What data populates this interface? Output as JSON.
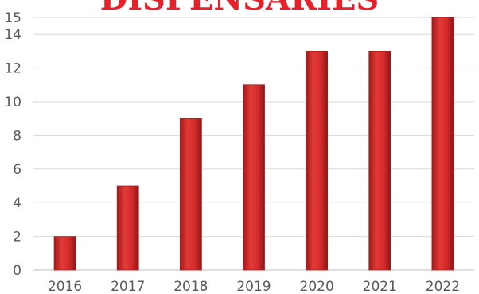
{
  "chart_data": {
    "type": "bar",
    "title": "DISPENSARIES",
    "xlabel": "",
    "ylabel": "",
    "categories": [
      "2016",
      "2017",
      "2018",
      "2019",
      "2020",
      "2021",
      "2022"
    ],
    "values": [
      2,
      5,
      9,
      11,
      13,
      13,
      15
    ],
    "ylim": [
      0,
      15
    ],
    "yticks": [
      "0",
      "2",
      "4",
      "6",
      "8",
      "10",
      "12",
      "14",
      "15"
    ],
    "grid": true,
    "legend": "none",
    "colors": {
      "bar": "#d42a2a",
      "bar_dark": "#a81c1c",
      "title": "#e8202a",
      "grid": "#d9d9d9",
      "axis": "#bfbfbf"
    }
  }
}
